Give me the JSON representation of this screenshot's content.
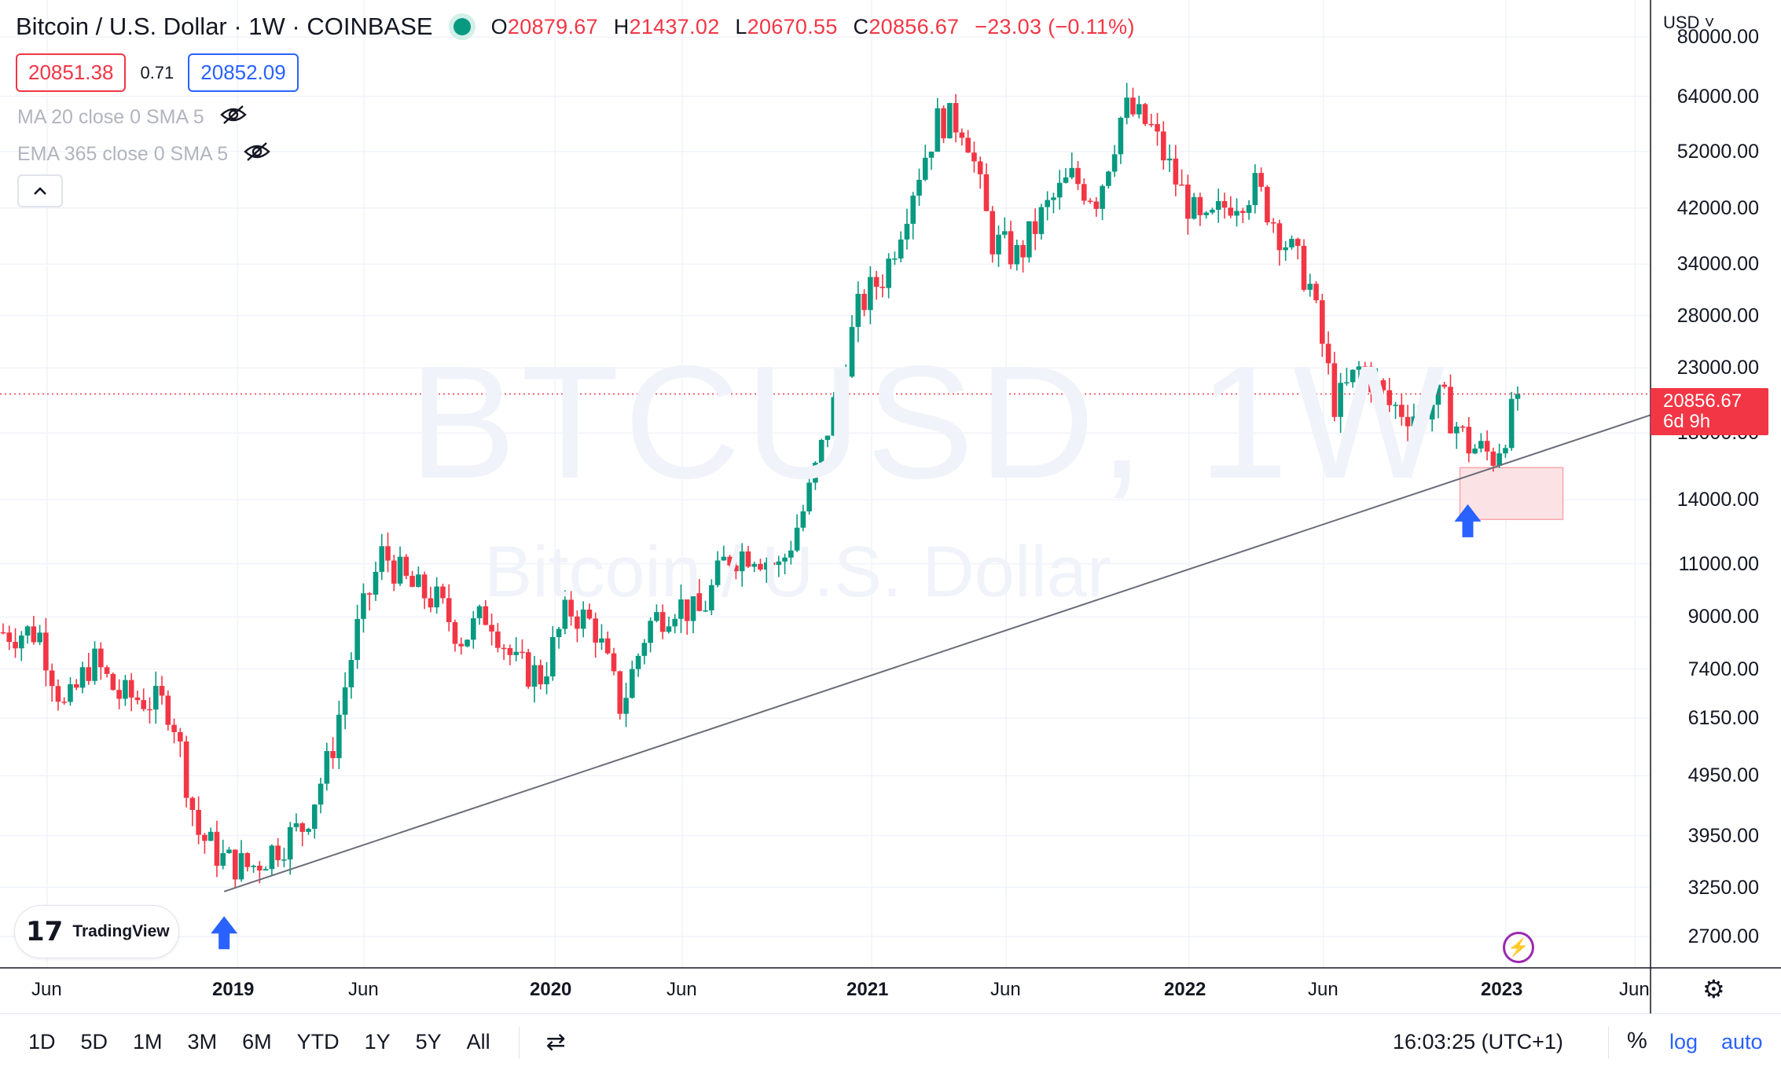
{
  "header": {
    "title": "Bitcoin / U.S. Dollar · 1W · COINBASE",
    "ohlc": [
      {
        "label": "O",
        "value": "20879.67"
      },
      {
        "label": "H",
        "value": "21437.02"
      },
      {
        "label": "L",
        "value": "20670.55"
      },
      {
        "label": "C",
        "value": "20856.67"
      },
      {
        "label": "",
        "value": "−23.03 (−0.11%)"
      }
    ],
    "bid": "20851.38",
    "spread": "0.71",
    "ask": "20852.09"
  },
  "indicators": [
    {
      "label": "MA 20 close 0 SMA 5",
      "icon": "eye-off-icon"
    },
    {
      "label": "EMA 365 close 0 SMA 5",
      "icon": "eye-off-icon"
    }
  ],
  "collapse_icon": "chevron-up-icon",
  "watermark": {
    "symbol": "BTCUSD, 1W",
    "description": "Bitcoin / U.S. Dollar"
  },
  "price_axis": {
    "currency": "USD",
    "labels": [
      "80000.00",
      "64000.00",
      "52000.00",
      "42000.00",
      "34000.00",
      "28000.00",
      "23000.00",
      "18000.00",
      "14000.00",
      "11000.00",
      "9000.00",
      "7400.00",
      "6150.00",
      "4950.00",
      "3950.00",
      "3250.00",
      "2700.00"
    ],
    "last_price": "20856.67",
    "countdown": "6d 9h"
  },
  "time_axis": [
    {
      "label": "Jun",
      "bold": false
    },
    {
      "label": "2019",
      "bold": true
    },
    {
      "label": "Jun",
      "bold": false
    },
    {
      "label": "2020",
      "bold": true
    },
    {
      "label": "Jun",
      "bold": false
    },
    {
      "label": "2021",
      "bold": true
    },
    {
      "label": "Jun",
      "bold": false
    },
    {
      "label": "2022",
      "bold": true
    },
    {
      "label": "Jun",
      "bold": false
    },
    {
      "label": "2023",
      "bold": true
    },
    {
      "label": "Jun",
      "bold": false
    }
  ],
  "branding": {
    "logo_text": "TradingView"
  },
  "bottom_bar": {
    "ranges": [
      "1D",
      "5D",
      "1M",
      "3M",
      "6M",
      "YTD",
      "1Y",
      "5Y",
      "All"
    ],
    "time": "16:03:25 (UTC+1)",
    "percent": "%",
    "log": "log",
    "auto": "auto"
  },
  "colors": {
    "up": "#089981",
    "down": "#f23645",
    "trendline": "#6a6d78",
    "accent": "#2962ff",
    "zone": "#fbe3e5"
  },
  "chart_data": {
    "type": "candlestick",
    "title": "Bitcoin / U.S. Dollar · 1W · COINBASE",
    "scale": "log",
    "interval": "1W",
    "ylim": [
      2400,
      92000
    ],
    "grid": true,
    "series": [
      {
        "date": "2018-05",
        "close": 8500
      },
      {
        "date": "2018-06",
        "close": 6300
      },
      {
        "date": "2018-07",
        "close": 7700
      },
      {
        "date": "2018-08",
        "close": 6700
      },
      {
        "date": "2018-09",
        "close": 6600
      },
      {
        "date": "2018-10",
        "close": 6400
      },
      {
        "date": "2018-11",
        "close": 4000
      },
      {
        "date": "2018-12",
        "close": 3600
      },
      {
        "date": "2019-01",
        "close": 3500
      },
      {
        "date": "2019-02",
        "close": 3800
      },
      {
        "date": "2019-03",
        "close": 4100
      },
      {
        "date": "2019-04",
        "close": 5300
      },
      {
        "date": "2019-05",
        "close": 8500
      },
      {
        "date": "2019-06",
        "close": 11500
      },
      {
        "date": "2019-07",
        "close": 10100
      },
      {
        "date": "2019-08",
        "close": 9600
      },
      {
        "date": "2019-09",
        "close": 8300
      },
      {
        "date": "2019-10",
        "close": 9200
      },
      {
        "date": "2019-11",
        "close": 7500
      },
      {
        "date": "2019-12",
        "close": 7200
      },
      {
        "date": "2020-01",
        "close": 9300
      },
      {
        "date": "2020-02",
        "close": 8700
      },
      {
        "date": "2020-03",
        "close": 6400
      },
      {
        "date": "2020-04",
        "close": 8700
      },
      {
        "date": "2020-05",
        "close": 9500
      },
      {
        "date": "2020-06",
        "close": 9100
      },
      {
        "date": "2020-07",
        "close": 11300
      },
      {
        "date": "2020-08",
        "close": 11600
      },
      {
        "date": "2020-09",
        "close": 10800
      },
      {
        "date": "2020-10",
        "close": 13800
      },
      {
        "date": "2020-11",
        "close": 19700
      },
      {
        "date": "2020-12",
        "close": 29000
      },
      {
        "date": "2021-01",
        "close": 33100
      },
      {
        "date": "2021-02",
        "close": 45200
      },
      {
        "date": "2021-03",
        "close": 58800
      },
      {
        "date": "2021-04",
        "close": 57700
      },
      {
        "date": "2021-05",
        "close": 37300
      },
      {
        "date": "2021-06",
        "close": 35000
      },
      {
        "date": "2021-07",
        "close": 41500
      },
      {
        "date": "2021-08",
        "close": 47100
      },
      {
        "date": "2021-09",
        "close": 43800
      },
      {
        "date": "2021-10",
        "close": 61300
      },
      {
        "date": "2021-11",
        "close": 57000
      },
      {
        "date": "2021-12",
        "close": 46200
      },
      {
        "date": "2022-01",
        "close": 38500
      },
      {
        "date": "2022-02",
        "close": 43200
      },
      {
        "date": "2022-03",
        "close": 45500
      },
      {
        "date": "2022-04",
        "close": 37700
      },
      {
        "date": "2022-05",
        "close": 31800
      },
      {
        "date": "2022-06",
        "close": 19900
      },
      {
        "date": "2022-07",
        "close": 23300
      },
      {
        "date": "2022-08",
        "close": 20000
      },
      {
        "date": "2022-09",
        "close": 19400
      },
      {
        "date": "2022-10",
        "close": 20500
      },
      {
        "date": "2022-11",
        "close": 17200
      },
      {
        "date": "2022-12",
        "close": 16500
      },
      {
        "date": "2023-01",
        "close": 20856.67
      }
    ],
    "trendline": [
      {
        "date": "2018-12",
        "price": 3200
      },
      {
        "date": "2020-03",
        "price": 5200
      },
      {
        "date": "2022-11",
        "price": 15800
      },
      {
        "date": "2023-03",
        "price": 18700
      }
    ],
    "support_zone": {
      "from": "2022-11",
      "to": "2023-02",
      "price_low": 13000,
      "price_high": 15800
    },
    "annotations": [
      {
        "type": "arrow-up",
        "date": "2018-12",
        "price": 2500
      },
      {
        "type": "arrow-up",
        "date": "2022-11",
        "price": 11800
      }
    ],
    "last_price_line": 20856.67
  }
}
